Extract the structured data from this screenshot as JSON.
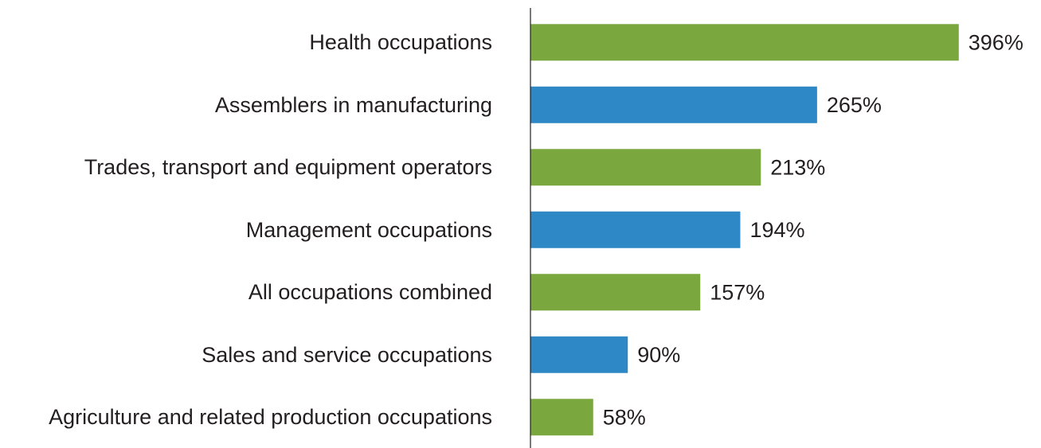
{
  "chart_data": {
    "type": "barh",
    "categories": [
      "Health occupations",
      "Assemblers in manufacturing",
      "Trades, transport and equipment operators",
      "Management occupations",
      "All occupations combined",
      "Sales and service occupations",
      "Agriculture and related production occupations"
    ],
    "values": [
      396,
      265,
      213,
      194,
      157,
      90,
      58
    ],
    "value_labels": [
      "396%",
      "265%",
      "213%",
      "194%",
      "157%",
      "90%",
      "58%"
    ],
    "colors": [
      "#7aa83f",
      "#2e88c6",
      "#7aa83f",
      "#2e88c6",
      "#7aa83f",
      "#2e88c6",
      "#7aa83f"
    ],
    "xlim": [
      0,
      470
    ]
  }
}
